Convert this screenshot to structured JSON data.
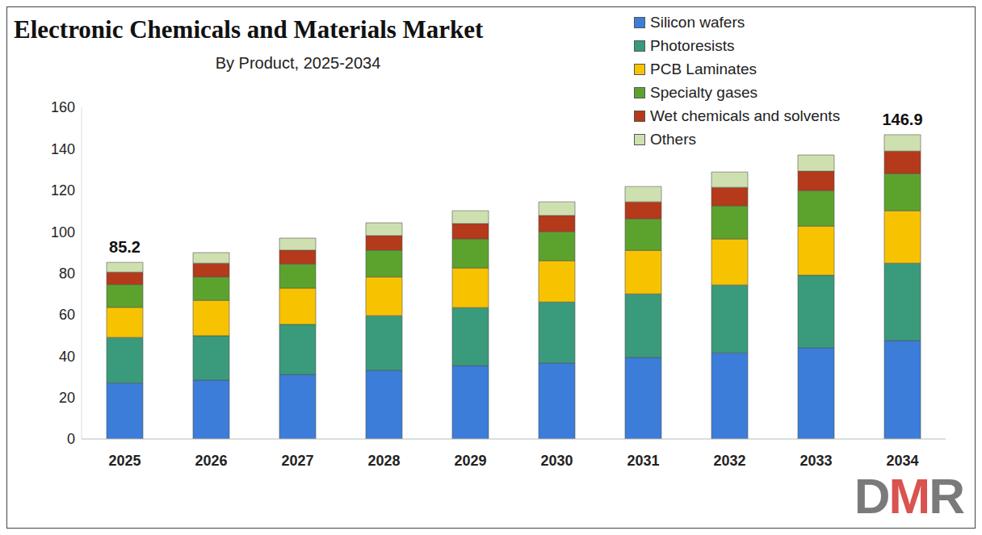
{
  "chart_data": {
    "type": "bar",
    "title": "Electronic Chemicals and Materials Market",
    "subtitle": "By Product, 2025-2034",
    "stacked": true,
    "grid": false,
    "legend": "top-right",
    "categories": [
      "2025",
      "2026",
      "2027",
      "2028",
      "2029",
      "2030",
      "2031",
      "2032",
      "2033",
      "2034"
    ],
    "ylim": [
      0,
      160
    ],
    "yticks": [
      0,
      20,
      40,
      60,
      80,
      100,
      120,
      140,
      160
    ],
    "series": [
      {
        "name": "Silicon wafers",
        "color": "#3b7dd8",
        "values": [
          27,
          28.4,
          31.1,
          33.1,
          35.4,
          36.6,
          39.3,
          41.6,
          44,
          47.5
        ]
      },
      {
        "name": "Photoresists",
        "color": "#3a9a7c",
        "values": [
          22,
          21.4,
          24.2,
          26.4,
          28,
          29.5,
          30.7,
          32.7,
          35,
          37.3
        ]
      },
      {
        "name": "PCB Laminates",
        "color": "#f7c300",
        "values": [
          14.5,
          17.1,
          17.5,
          18.7,
          19.1,
          19.9,
          21,
          22.2,
          23.7,
          25.3
        ]
      },
      {
        "name": "Specialty gases",
        "color": "#5ca32e",
        "values": [
          11,
          11.3,
          11.6,
          12.9,
          14,
          14,
          15.2,
          16,
          17.1,
          17.9
        ]
      },
      {
        "name": "Wet chemicals and solvents",
        "color": "#b5391b",
        "values": [
          6,
          6.6,
          6.7,
          7,
          7.4,
          7.8,
          8.2,
          8.9,
          9.4,
          10.9
        ]
      },
      {
        "name": "Others",
        "color": "#cfe0b0",
        "values": [
          4.7,
          5.1,
          5.8,
          6.2,
          6.2,
          6.6,
          7.4,
          7.4,
          7.8,
          7.9
        ]
      }
    ],
    "annotations": [
      {
        "x": "2025",
        "text": "85.2"
      },
      {
        "x": "2034",
        "text": "146.9"
      }
    ],
    "watermark": "DMR"
  }
}
